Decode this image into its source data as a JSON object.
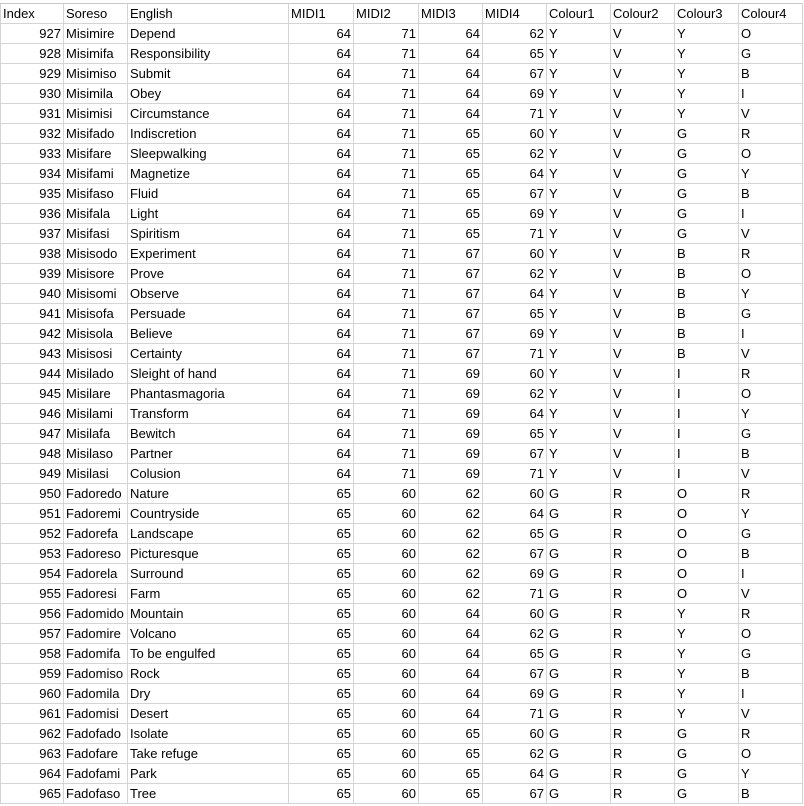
{
  "columns": [
    "Index",
    "Soreso",
    "English",
    "MIDI1",
    "MIDI2",
    "MIDI3",
    "MIDI4",
    "Colour1",
    "Colour2",
    "Colour3",
    "Colour4"
  ],
  "rows": [
    [
      927,
      "Misimire",
      "Depend",
      64,
      71,
      64,
      62,
      "Y",
      "V",
      "Y",
      "O"
    ],
    [
      928,
      "Misimifa",
      "Responsibility",
      64,
      71,
      64,
      65,
      "Y",
      "V",
      "Y",
      "G"
    ],
    [
      929,
      "Misimiso",
      "Submit",
      64,
      71,
      64,
      67,
      "Y",
      "V",
      "Y",
      "B"
    ],
    [
      930,
      "Misimila",
      "Obey",
      64,
      71,
      64,
      69,
      "Y",
      "V",
      "Y",
      "I"
    ],
    [
      931,
      "Misimisi",
      "Circumstance",
      64,
      71,
      64,
      71,
      "Y",
      "V",
      "Y",
      "V"
    ],
    [
      932,
      "Misifado",
      "Indiscretion",
      64,
      71,
      65,
      60,
      "Y",
      "V",
      "G",
      "R"
    ],
    [
      933,
      "Misifare",
      "Sleepwalking",
      64,
      71,
      65,
      62,
      "Y",
      "V",
      "G",
      "O"
    ],
    [
      934,
      "Misifami",
      "Magnetize",
      64,
      71,
      65,
      64,
      "Y",
      "V",
      "G",
      "Y"
    ],
    [
      935,
      "Misifaso",
      "Fluid",
      64,
      71,
      65,
      67,
      "Y",
      "V",
      "G",
      "B"
    ],
    [
      936,
      "Misifala",
      "Light",
      64,
      71,
      65,
      69,
      "Y",
      "V",
      "G",
      "I"
    ],
    [
      937,
      "Misifasi",
      "Spiritism",
      64,
      71,
      65,
      71,
      "Y",
      "V",
      "G",
      "V"
    ],
    [
      938,
      "Misisodo",
      "Experiment",
      64,
      71,
      67,
      60,
      "Y",
      "V",
      "B",
      "R"
    ],
    [
      939,
      "Misisore",
      "Prove",
      64,
      71,
      67,
      62,
      "Y",
      "V",
      "B",
      "O"
    ],
    [
      940,
      "Misisomi",
      "Observe",
      64,
      71,
      67,
      64,
      "Y",
      "V",
      "B",
      "Y"
    ],
    [
      941,
      "Misisofa",
      "Persuade",
      64,
      71,
      67,
      65,
      "Y",
      "V",
      "B",
      "G"
    ],
    [
      942,
      "Misisola",
      "Believe",
      64,
      71,
      67,
      69,
      "Y",
      "V",
      "B",
      "I"
    ],
    [
      943,
      "Misisosi",
      "Certainty",
      64,
      71,
      67,
      71,
      "Y",
      "V",
      "B",
      "V"
    ],
    [
      944,
      "Misilado",
      "Sleight of hand",
      64,
      71,
      69,
      60,
      "Y",
      "V",
      "I",
      "R"
    ],
    [
      945,
      "Misilare",
      "Phantasmagoria",
      64,
      71,
      69,
      62,
      "Y",
      "V",
      "I",
      "O"
    ],
    [
      946,
      "Misilami",
      "Transform",
      64,
      71,
      69,
      64,
      "Y",
      "V",
      "I",
      "Y"
    ],
    [
      947,
      "Misilafa",
      "Bewitch",
      64,
      71,
      69,
      65,
      "Y",
      "V",
      "I",
      "G"
    ],
    [
      948,
      "Misilaso",
      "Partner",
      64,
      71,
      69,
      67,
      "Y",
      "V",
      "I",
      "B"
    ],
    [
      949,
      "Misilasi",
      "Colusion",
      64,
      71,
      69,
      71,
      "Y",
      "V",
      "I",
      "V"
    ],
    [
      950,
      "Fadoredo",
      "Nature",
      65,
      60,
      62,
      60,
      "G",
      "R",
      "O",
      "R"
    ],
    [
      951,
      "Fadoremi",
      "Countryside",
      65,
      60,
      62,
      64,
      "G",
      "R",
      "O",
      "Y"
    ],
    [
      952,
      "Fadorefa",
      "Landscape",
      65,
      60,
      62,
      65,
      "G",
      "R",
      "O",
      "G"
    ],
    [
      953,
      "Fadoreso",
      "Picturesque",
      65,
      60,
      62,
      67,
      "G",
      "R",
      "O",
      "B"
    ],
    [
      954,
      "Fadorela",
      "Surround",
      65,
      60,
      62,
      69,
      "G",
      "R",
      "O",
      "I"
    ],
    [
      955,
      "Fadoresi",
      "Farm",
      65,
      60,
      62,
      71,
      "G",
      "R",
      "O",
      "V"
    ],
    [
      956,
      "Fadomido",
      "Mountain",
      65,
      60,
      64,
      60,
      "G",
      "R",
      "Y",
      "R"
    ],
    [
      957,
      "Fadomire",
      "Volcano",
      65,
      60,
      64,
      62,
      "G",
      "R",
      "Y",
      "O"
    ],
    [
      958,
      "Fadomifa",
      "To be engulfed",
      65,
      60,
      64,
      65,
      "G",
      "R",
      "Y",
      "G"
    ],
    [
      959,
      "Fadomiso",
      "Rock",
      65,
      60,
      64,
      67,
      "G",
      "R",
      "Y",
      "B"
    ],
    [
      960,
      "Fadomila",
      "Dry",
      65,
      60,
      64,
      69,
      "G",
      "R",
      "Y",
      "I"
    ],
    [
      961,
      "Fadomisi",
      "Desert",
      65,
      60,
      64,
      71,
      "G",
      "R",
      "Y",
      "V"
    ],
    [
      962,
      "Fadofado",
      "Isolate",
      65,
      60,
      65,
      60,
      "G",
      "R",
      "G",
      "R"
    ],
    [
      963,
      "Fadofare",
      "Take refuge",
      65,
      60,
      65,
      62,
      "G",
      "R",
      "G",
      "O"
    ],
    [
      964,
      "Fadofami",
      "Park",
      65,
      60,
      65,
      64,
      "G",
      "R",
      "G",
      "Y"
    ],
    [
      965,
      "Fadofaso",
      "Tree",
      65,
      60,
      65,
      67,
      "G",
      "R",
      "G",
      "B"
    ]
  ]
}
